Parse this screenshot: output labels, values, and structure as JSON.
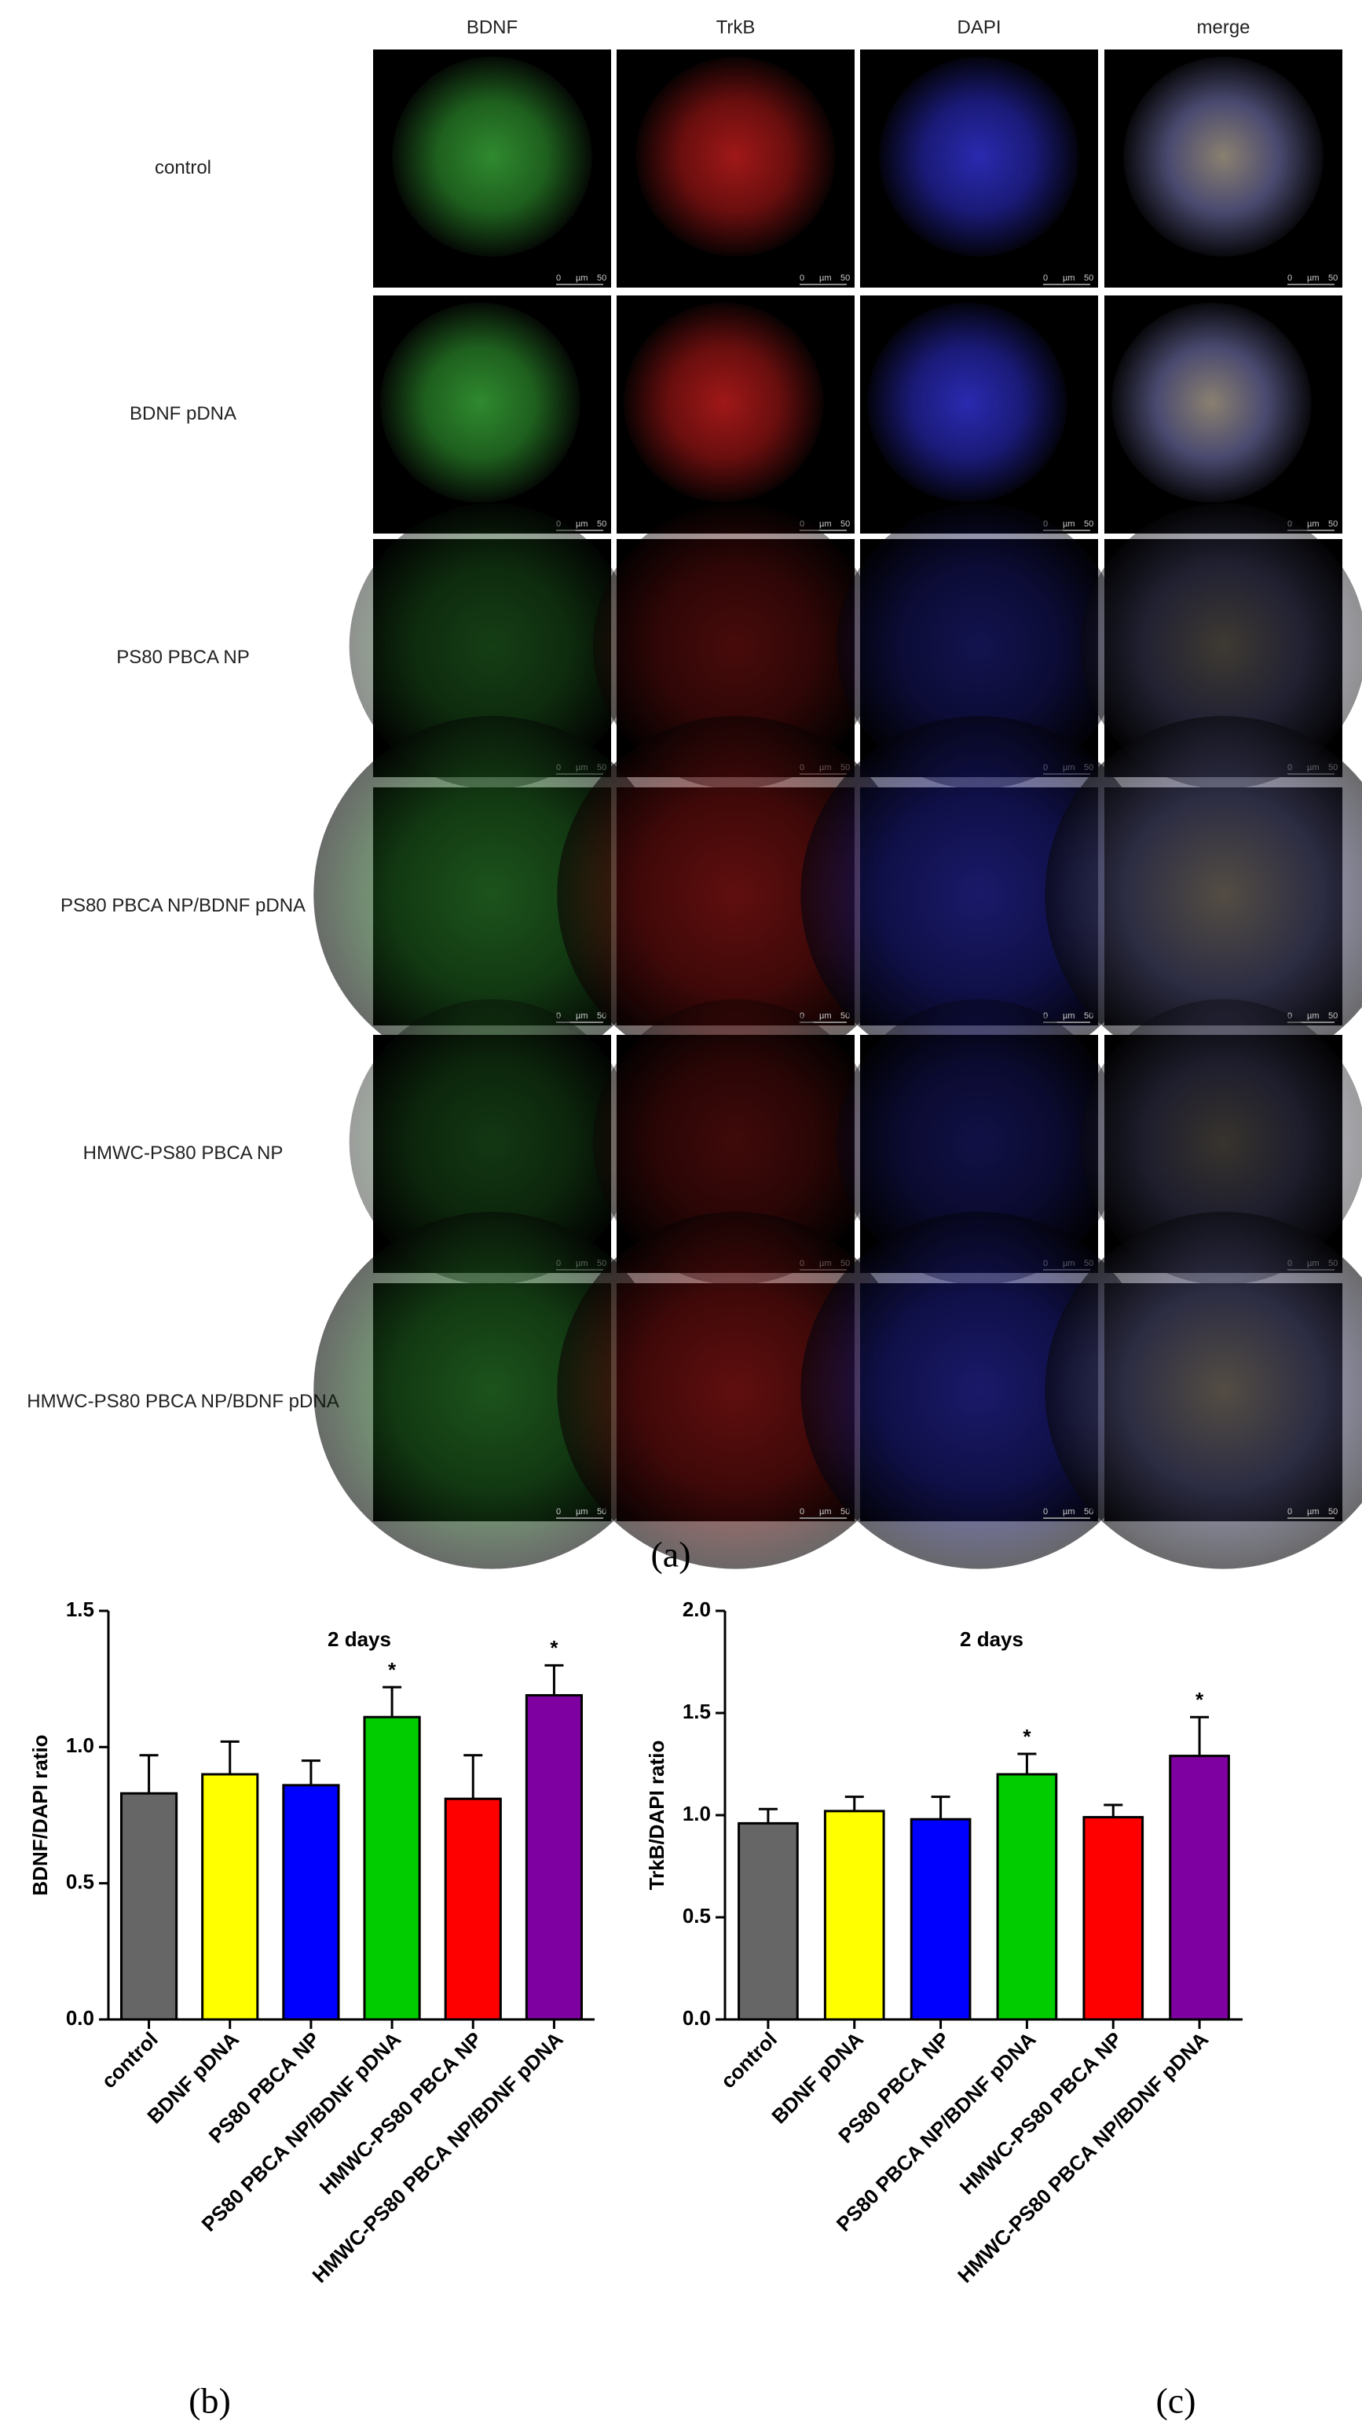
{
  "panel_a": {
    "columns": [
      "BDNF",
      "TrkB",
      "DAPI",
      "merge"
    ],
    "rows": [
      "control",
      "BDNF pDNA",
      "PS80 PBCA NP",
      "PS80 PBCA NP/BDNF pDNA",
      "HMWC-PS80 PBCA NP",
      "HMWC-PS80 PBCA NP/BDNF pDNA"
    ],
    "scale_bar": [
      "0",
      "µm",
      "50"
    ],
    "label": "(a)"
  },
  "chart_data": [
    {
      "type": "bar",
      "title": "2 days",
      "ylabel": "BDNF/DAPI ratio",
      "panel_label": "(b)",
      "categories": [
        "control",
        "BDNF pDNA",
        "PS80 PBCA NP",
        "PS80 PBCA NP/BDNF pDNA",
        "HMWC-PS80 PBCA NP",
        "HMWC-PS80 PBCA NP/BDNF pDNA"
      ],
      "values": [
        0.83,
        0.9,
        0.86,
        1.11,
        0.81,
        1.19
      ],
      "errors": [
        0.14,
        0.12,
        0.09,
        0.11,
        0.16,
        0.11
      ],
      "significance": [
        null,
        null,
        null,
        "*",
        null,
        "*"
      ],
      "colors": [
        "#666666",
        "#ffff00",
        "#0000ff",
        "#00cc00",
        "#ff0000",
        "#7f00a0"
      ],
      "ylim": [
        0,
        1.5
      ],
      "yticks": [
        {
          "value": 0,
          "label": "0.0"
        },
        {
          "value": 0.5,
          "label": "0.5"
        },
        {
          "value": 1,
          "label": "1.0"
        },
        {
          "value": 1.5,
          "label": "1.5"
        }
      ]
    },
    {
      "type": "bar",
      "title": "2 days",
      "ylabel": "TrkB/DAPI ratio",
      "panel_label": "(c)",
      "categories": [
        "control",
        "BDNF pDNA",
        "PS80 PBCA NP",
        "PS80 PBCA NP/BDNF pDNA",
        "HMWC-PS80 PBCA NP",
        "HMWC-PS80 PBCA NP/BDNF pDNA"
      ],
      "values": [
        0.96,
        1.02,
        0.98,
        1.2,
        0.99,
        1.29
      ],
      "errors": [
        0.07,
        0.07,
        0.11,
        0.1,
        0.06,
        0.19
      ],
      "significance": [
        null,
        null,
        null,
        "*",
        null,
        "*"
      ],
      "colors": [
        "#666666",
        "#ffff00",
        "#0000ff",
        "#00cc00",
        "#ff0000",
        "#7f00a0"
      ],
      "ylim": [
        0,
        2
      ],
      "yticks": [
        {
          "value": 0,
          "label": "0.0"
        },
        {
          "value": 0.5,
          "label": "0.5"
        },
        {
          "value": 1,
          "label": "1.0"
        },
        {
          "value": 1.5,
          "label": "1.5"
        },
        {
          "value": 2,
          "label": "2.0"
        }
      ]
    }
  ]
}
